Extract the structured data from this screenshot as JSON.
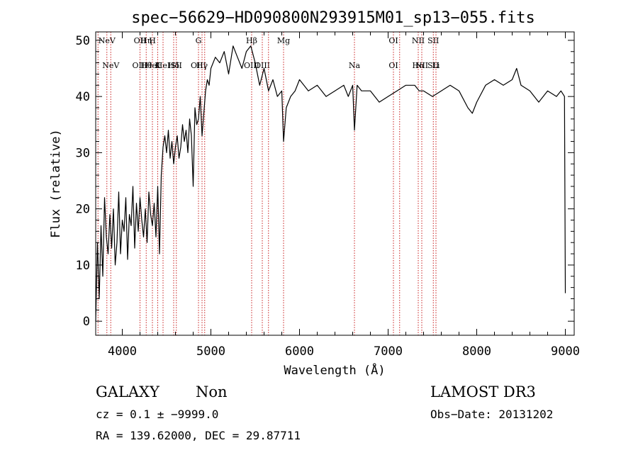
{
  "chart_data": {
    "type": "line",
    "title": "spec−56629−HD090800N293915M01_sp13−055.fits",
    "xlabel": "Wavelength (Å)",
    "ylabel": "Flux (relative)",
    "xlim": [
      3700,
      9100
    ],
    "ylim": [
      -2.5,
      51.5
    ],
    "xticks": [
      4000,
      5000,
      6000,
      7000,
      8000,
      9000
    ],
    "yticks": [
      0,
      10,
      20,
      30,
      40,
      50
    ],
    "grid": false,
    "line_color": "#000000",
    "marker_color": "#c81e1e",
    "series": [
      {
        "values_x": [
          3700,
          3720,
          3740,
          3760,
          3780,
          3800,
          3820,
          3840,
          3860,
          3880,
          3900,
          3920,
          3940,
          3960,
          3980,
          4000,
          4020,
          4040,
          4060,
          4080,
          4100,
          4120,
          4140,
          4160,
          4180,
          4200,
          4220,
          4240,
          4260,
          4280,
          4300,
          4320,
          4340,
          4360,
          4380,
          4400,
          4420,
          4440,
          4460,
          4480,
          4500,
          4520,
          4540,
          4560,
          4580,
          4600,
          4620,
          4640,
          4660,
          4680,
          4700,
          4720,
          4740,
          4760,
          4780,
          4800,
          4820,
          4840,
          4860,
          4880,
          4900,
          4920,
          4940,
          4960,
          4980,
          5000,
          5050,
          5100,
          5150,
          5200,
          5250,
          5300,
          5350,
          5400,
          5450,
          5500,
          5550,
          5600,
          5650,
          5700,
          5750,
          5800,
          5820,
          5850,
          5900,
          5950,
          6000,
          6100,
          6200,
          6300,
          6400,
          6500,
          6550,
          6600,
          6620,
          6650,
          6700,
          6800,
          6900,
          7000,
          7100,
          7200,
          7300,
          7350,
          7400,
          7500,
          7600,
          7700,
          7800,
          7900,
          7950,
          8000,
          8100,
          8200,
          8300,
          8400,
          8450,
          8500,
          8600,
          8700,
          8800,
          8900,
          8950,
          8990,
          9000
        ],
        "values_y": [
          0,
          14,
          4,
          17,
          8,
          22,
          15,
          12,
          19,
          13,
          20,
          10,
          14,
          23,
          12,
          18,
          16,
          22,
          11,
          19,
          17,
          24,
          13,
          21,
          16,
          22,
          18,
          15,
          20,
          14,
          23,
          19,
          17,
          21,
          15,
          24,
          12,
          26,
          31,
          33,
          30,
          34,
          29,
          32,
          28,
          31,
          33,
          29,
          31,
          35,
          32,
          34,
          30,
          36,
          33,
          24,
          38,
          35,
          36,
          40,
          33,
          37,
          41,
          43,
          42,
          45,
          47,
          46,
          48,
          44,
          49,
          47,
          45,
          48,
          49,
          46,
          42,
          45,
          41,
          43,
          40,
          41,
          32,
          38,
          40,
          41,
          43,
          41,
          42,
          40,
          41,
          42,
          40,
          42,
          34,
          42,
          41,
          41,
          39,
          40,
          41,
          42,
          42,
          41,
          41,
          40,
          41,
          42,
          41,
          38,
          37,
          39,
          42,
          43,
          42,
          43,
          45,
          42,
          41,
          39,
          41,
          40,
          41,
          40,
          5
        ]
      }
    ],
    "line_markers": [
      {
        "x": 3726,
        "upper": "",
        "lower": ""
      },
      {
        "x": 3826,
        "upper": "NeV",
        "lower": ""
      },
      {
        "x": 3870,
        "upper": "",
        "lower": "NeV"
      },
      {
        "x": 4200,
        "upper": "OII",
        "lower": "OIII"
      },
      {
        "x": 4270,
        "upper": "Hη",
        "lower": "Hθ"
      },
      {
        "x": 4340,
        "upper": "H",
        "lower": "HeI"
      },
      {
        "x": 4400,
        "upper": "",
        "lower": "K"
      },
      {
        "x": 4460,
        "upper": "",
        "lower": "HeI"
      },
      {
        "x": 4580,
        "upper": "",
        "lower": "Hδ"
      },
      {
        "x": 4610,
        "upper": "",
        "lower": "SII"
      },
      {
        "x": 4860,
        "upper": "G",
        "lower": "OIII"
      },
      {
        "x": 4900,
        "upper": "",
        "lower": "Hγ"
      },
      {
        "x": 4930,
        "upper": "",
        "lower": ""
      },
      {
        "x": 5460,
        "upper": "Hβ",
        "lower": "OIII"
      },
      {
        "x": 5580,
        "upper": "",
        "lower": "OIII"
      },
      {
        "x": 5650,
        "upper": "",
        "lower": ""
      },
      {
        "x": 5820,
        "upper": "Mg",
        "lower": ""
      },
      {
        "x": 6620,
        "upper": "",
        "lower": "Na"
      },
      {
        "x": 7060,
        "upper": "OI",
        "lower": "OI"
      },
      {
        "x": 7130,
        "upper": "",
        "lower": ""
      },
      {
        "x": 7340,
        "upper": "NII",
        "lower": "Hα"
      },
      {
        "x": 7380,
        "upper": "",
        "lower": "NII"
      },
      {
        "x": 7510,
        "upper": "SII",
        "lower": "SII"
      },
      {
        "x": 7540,
        "upper": "",
        "lower": "Li"
      }
    ]
  },
  "info": {
    "object_class": "GALAXY",
    "subclass": "Non",
    "survey": "LAMOST DR3",
    "cz": "cz = 0.1 ± −9999.0",
    "obs_date": "Obs−Date: 20131202",
    "radec": "RA = 139.62000, DEC =  29.87711"
  }
}
